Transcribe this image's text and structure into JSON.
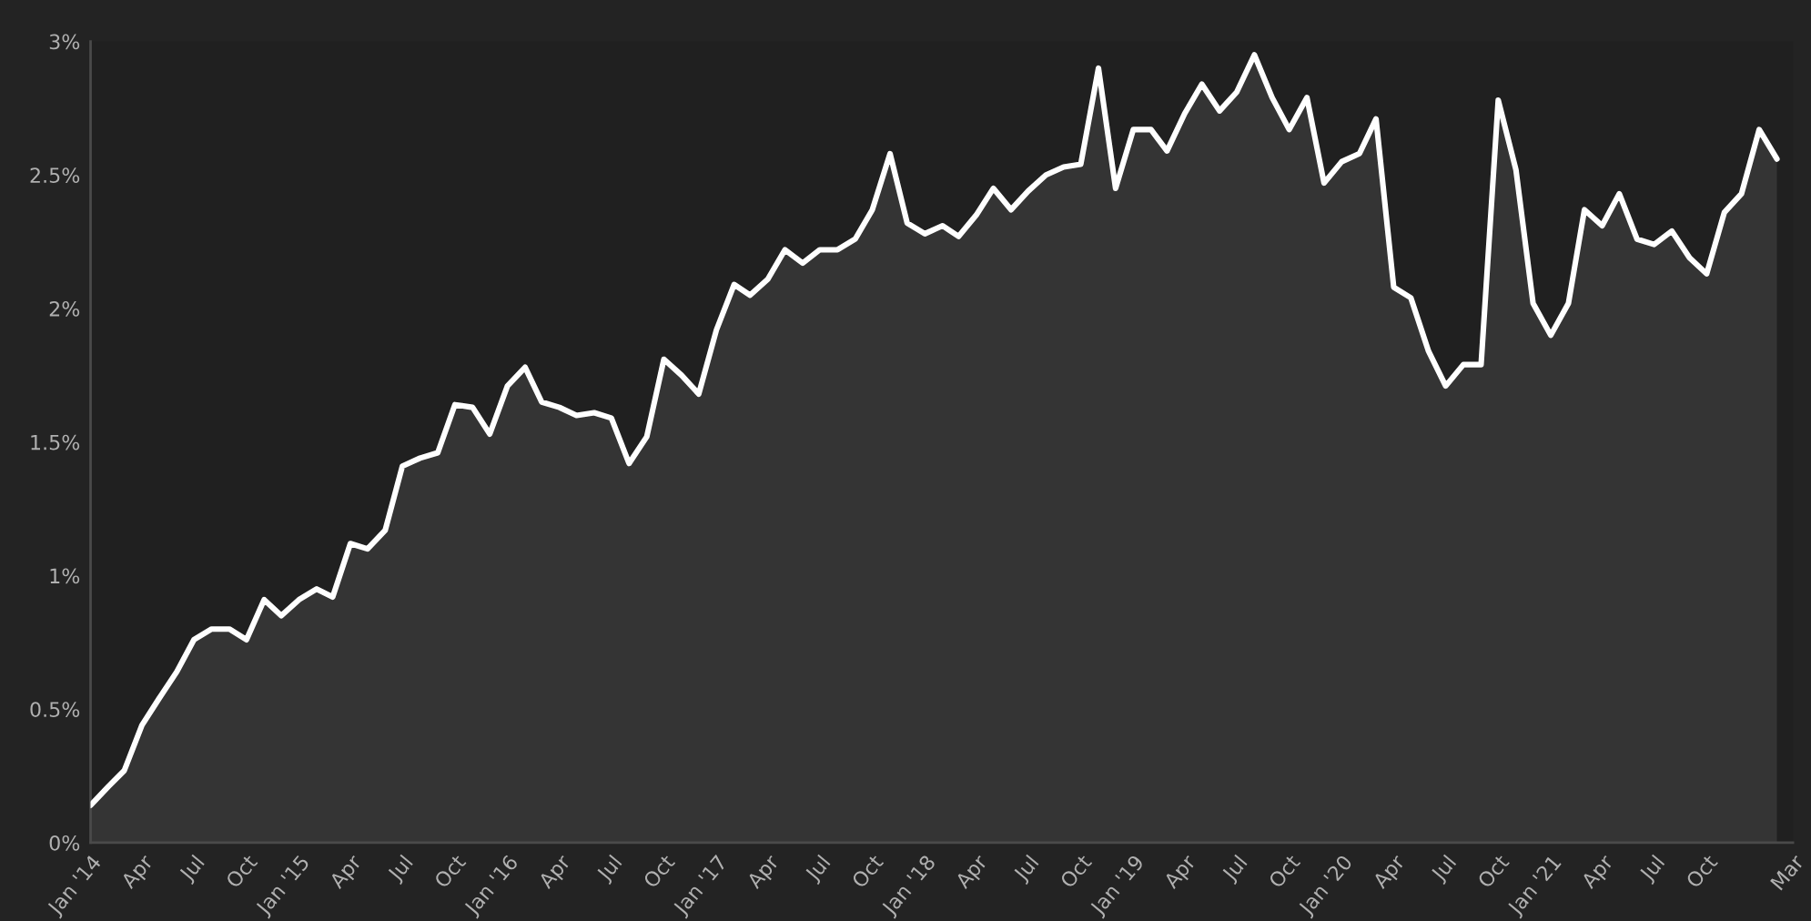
{
  "chart_data": {
    "type": "area",
    "x": [
      "2014-01",
      "2014-02",
      "2014-03",
      "2014-04",
      "2014-05",
      "2014-06",
      "2014-07",
      "2014-08",
      "2014-09",
      "2014-10",
      "2014-11",
      "2014-12",
      "2015-01",
      "2015-02",
      "2015-03",
      "2015-04",
      "2015-05",
      "2015-06",
      "2015-07",
      "2015-08",
      "2015-09",
      "2015-10",
      "2015-11",
      "2015-12",
      "2016-01",
      "2016-02",
      "2016-03",
      "2016-04",
      "2016-05",
      "2016-06",
      "2016-07",
      "2016-08",
      "2016-09",
      "2016-10",
      "2016-11",
      "2016-12",
      "2017-01",
      "2017-02",
      "2017-03",
      "2017-04",
      "2017-05",
      "2017-06",
      "2017-07",
      "2017-08",
      "2017-09",
      "2017-10",
      "2017-11",
      "2017-12",
      "2018-01",
      "2018-02",
      "2018-03",
      "2018-04",
      "2018-05",
      "2018-06",
      "2018-07",
      "2018-08",
      "2018-09",
      "2018-10",
      "2018-11",
      "2018-12",
      "2019-01",
      "2019-02",
      "2019-03",
      "2019-04",
      "2019-05",
      "2019-06",
      "2019-07",
      "2019-08",
      "2019-09",
      "2019-10",
      "2019-11",
      "2019-12",
      "2020-01",
      "2020-02",
      "2020-03",
      "2020-04",
      "2020-05",
      "2020-06",
      "2020-07",
      "2020-08",
      "2020-09",
      "2020-10",
      "2020-11",
      "2020-12",
      "2021-01",
      "2021-02",
      "2021-03",
      "2021-04",
      "2021-05",
      "2021-06",
      "2021-07",
      "2021-08",
      "2021-09",
      "2021-10",
      "2021-11",
      "2021-12",
      "2022-01",
      "2022-02"
    ],
    "series": [
      {
        "color": "#ffffff",
        "values": [
          0.14,
          0.21,
          0.27,
          0.44,
          0.54,
          0.64,
          0.76,
          0.8,
          0.8,
          0.76,
          0.91,
          0.85,
          0.91,
          0.95,
          0.92,
          1.12,
          1.1,
          1.17,
          1.41,
          1.44,
          1.46,
          1.64,
          1.63,
          1.53,
          1.71,
          1.78,
          1.65,
          1.63,
          1.6,
          1.61,
          1.59,
          1.42,
          1.52,
          1.81,
          1.75,
          1.68,
          1.92,
          2.09,
          2.05,
          2.11,
          2.22,
          2.17,
          2.22,
          2.22,
          2.26,
          2.37,
          2.58,
          2.32,
          2.28,
          2.31,
          2.27,
          2.35,
          2.45,
          2.37,
          2.44,
          2.5,
          2.53,
          2.54,
          2.9,
          2.45,
          2.67,
          2.67,
          2.59,
          2.73,
          2.84,
          2.74,
          2.81,
          2.95,
          2.79,
          2.67,
          2.79,
          2.47,
          2.55,
          2.58,
          2.71,
          2.08,
          2.04,
          1.84,
          1.71,
          1.79,
          1.79,
          2.78,
          2.52,
          2.02,
          1.9,
          2.02,
          2.37,
          2.31,
          2.43,
          2.26,
          2.24,
          2.29,
          2.19,
          2.13,
          2.36,
          2.43,
          2.67,
          2.56
        ]
      }
    ],
    "xlim": [
      "2014-01",
      "2022-03"
    ],
    "xticks": [
      {
        "value": "2014-01",
        "label": "Jan '14"
      },
      {
        "value": "2014-04",
        "label": "Apr"
      },
      {
        "value": "2014-07",
        "label": "Jul"
      },
      {
        "value": "2014-10",
        "label": "Oct"
      },
      {
        "value": "2015-01",
        "label": "Jan '15"
      },
      {
        "value": "2015-04",
        "label": "Apr"
      },
      {
        "value": "2015-07",
        "label": "Jul"
      },
      {
        "value": "2015-10",
        "label": "Oct"
      },
      {
        "value": "2016-01",
        "label": "Jan '16"
      },
      {
        "value": "2016-04",
        "label": "Apr"
      },
      {
        "value": "2016-07",
        "label": "Jul"
      },
      {
        "value": "2016-10",
        "label": "Oct"
      },
      {
        "value": "2017-01",
        "label": "Jan '17"
      },
      {
        "value": "2017-04",
        "label": "Apr"
      },
      {
        "value": "2017-07",
        "label": "Jul"
      },
      {
        "value": "2017-10",
        "label": "Oct"
      },
      {
        "value": "2018-01",
        "label": "Jan '18"
      },
      {
        "value": "2018-04",
        "label": "Apr"
      },
      {
        "value": "2018-07",
        "label": "Jul"
      },
      {
        "value": "2018-10",
        "label": "Oct"
      },
      {
        "value": "2019-01",
        "label": "Jan '19"
      },
      {
        "value": "2019-04",
        "label": "Apr"
      },
      {
        "value": "2019-07",
        "label": "Jul"
      },
      {
        "value": "2019-10",
        "label": "Oct"
      },
      {
        "value": "2020-01",
        "label": "Jan '20"
      },
      {
        "value": "2020-04",
        "label": "Apr"
      },
      {
        "value": "2020-07",
        "label": "Jul"
      },
      {
        "value": "2020-10",
        "label": "Oct"
      },
      {
        "value": "2021-01",
        "label": "Jan '21"
      },
      {
        "value": "2021-04",
        "label": "Apr"
      },
      {
        "value": "2021-07",
        "label": "Jul"
      },
      {
        "value": "2021-10",
        "label": "Oct"
      },
      {
        "value": "2022-03",
        "label": "Mar"
      }
    ],
    "ylim": [
      0,
      3
    ],
    "yticks": [
      {
        "value": 0,
        "label": "0%"
      },
      {
        "value": 0.5,
        "label": "0.5%"
      },
      {
        "value": 1,
        "label": "1%"
      },
      {
        "value": 1.5,
        "label": "1.5%"
      },
      {
        "value": 2,
        "label": "2%"
      },
      {
        "value": 2.5,
        "label": "2.5%"
      },
      {
        "value": 3,
        "label": "3%"
      }
    ]
  }
}
